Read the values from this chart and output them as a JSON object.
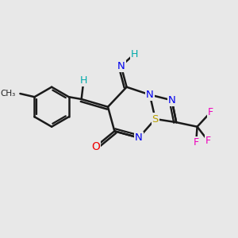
{
  "bg_color": "#e8e8e8",
  "bond_color": "#1a1a1a",
  "bond_width": 1.8,
  "atom_colors": {
    "N": "#0000ee",
    "S": "#b8a000",
    "O": "#ee0000",
    "F": "#ee00bb",
    "H": "#00aaaa",
    "C": "#1a1a1a"
  }
}
